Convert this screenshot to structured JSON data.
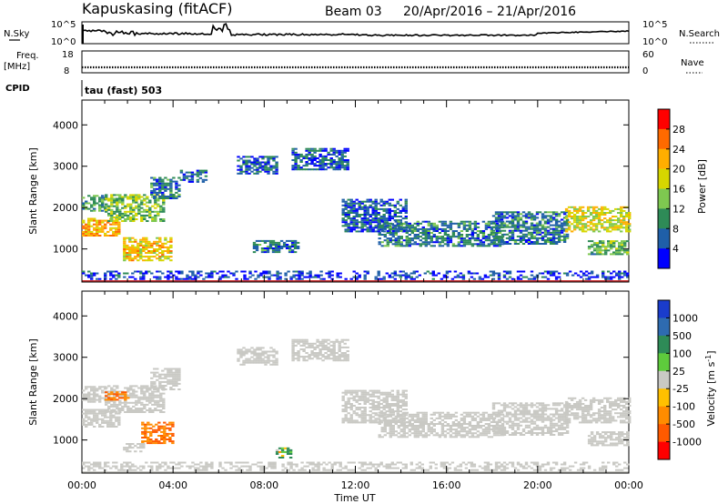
{
  "header": {
    "station": "Kapuskasing (fitACF)",
    "beam": "Beam 03",
    "date_range": "20/Apr/2016 – 21/Apr/2016"
  },
  "top_panels": {
    "nsky_label": "N.Sky",
    "nsky_ticks": [
      "10^5",
      "10^0"
    ],
    "nsearch_label": "N.Search",
    "nsearch_ticks": [
      "10^5",
      "10^0"
    ],
    "freq_label": "Freq.",
    "freq_unit": "[MHz]",
    "freq_ticks": [
      "18",
      "8"
    ],
    "nave_label": "Nave",
    "nave_ticks": [
      "60",
      "0"
    ],
    "cpid_label": "CPID",
    "cpid_value": "tau (fast) 503"
  },
  "chart_data": [
    {
      "type": "heatmap",
      "panel": "power",
      "xlabel": "",
      "ylabel": "Slant Range [km]",
      "x_range_hours": [
        0,
        24
      ],
      "ylim": [
        200,
        4600
      ],
      "yticks": [
        1000,
        2000,
        3000,
        4000
      ],
      "colorbar": {
        "label": "Power [dB]",
        "ticks": [
          "28",
          "24",
          "20",
          "16",
          "12",
          "8",
          "4"
        ],
        "colors": [
          "#ff0000",
          "#ff6a00",
          "#ffae00",
          "#d6d600",
          "#7ec850",
          "#2e8b57",
          "#1f5fa8",
          "#0000ff"
        ]
      },
      "echo_regions": [
        {
          "t0": 0.0,
          "t1": 1.6,
          "r0": 1300,
          "r1": 1750,
          "power": 22
        },
        {
          "t0": 0.0,
          "t1": 1.0,
          "r0": 1900,
          "r1": 2300,
          "power": 10
        },
        {
          "t0": 1.0,
          "t1": 3.6,
          "r0": 1650,
          "r1": 2300,
          "power": 14
        },
        {
          "t0": 1.8,
          "t1": 3.9,
          "r0": 700,
          "r1": 1250,
          "power": 20
        },
        {
          "t0": 3.0,
          "t1": 4.3,
          "r0": 2200,
          "r1": 2700,
          "power": 8
        },
        {
          "t0": 4.3,
          "t1": 5.5,
          "r0": 2600,
          "r1": 2900,
          "power": 6
        },
        {
          "t0": 6.8,
          "t1": 8.5,
          "r0": 2800,
          "r1": 3250,
          "power": 6
        },
        {
          "t0": 7.5,
          "t1": 9.5,
          "r0": 900,
          "r1": 1200,
          "power": 8
        },
        {
          "t0": 9.2,
          "t1": 11.6,
          "r0": 2900,
          "r1": 3400,
          "power": 6
        },
        {
          "t0": 11.4,
          "t1": 14.2,
          "r0": 1400,
          "r1": 2200,
          "power": 6
        },
        {
          "t0": 13.0,
          "t1": 18.5,
          "r0": 1050,
          "r1": 1650,
          "power": 8
        },
        {
          "t0": 18.0,
          "t1": 21.3,
          "r0": 1100,
          "r1": 1900,
          "power": 8
        },
        {
          "t0": 21.2,
          "t1": 24.0,
          "r0": 1400,
          "r1": 2000,
          "power": 18
        },
        {
          "t0": 22.2,
          "t1": 24.0,
          "r0": 850,
          "r1": 1200,
          "power": 12
        },
        {
          "t0": 0.0,
          "t1": 24.0,
          "r0": 250,
          "r1": 450,
          "power": 4
        }
      ]
    },
    {
      "type": "heatmap",
      "panel": "velocity",
      "xlabel": "Time UT",
      "ylabel": "Slant Range [km]",
      "x_range_hours": [
        0,
        24
      ],
      "xticks": [
        "00:00",
        "04:00",
        "08:00",
        "12:00",
        "16:00",
        "20:00",
        "00:00"
      ],
      "ylim": [
        200,
        4600
      ],
      "yticks": [
        1000,
        2000,
        3000,
        4000
      ],
      "colorbar": {
        "label": "Velocity [m s^-1]",
        "ticks": [
          "1000",
          "500",
          "100",
          "25",
          "-25",
          "-100",
          "-500",
          "-1000"
        ],
        "colors": [
          "#1a3ccc",
          "#2e6bb0",
          "#2e8b57",
          "#5ecb3c",
          "#c9c9c4",
          "#ffc000",
          "#ff8c00",
          "#ff5a00",
          "#ff0000"
        ]
      },
      "echo_regions": [
        {
          "t0": 0.0,
          "t1": 1.6,
          "r0": 1300,
          "r1": 1750,
          "velocity": 0
        },
        {
          "t0": 0.0,
          "t1": 1.0,
          "r0": 1900,
          "r1": 2300,
          "velocity": 0
        },
        {
          "t0": 1.0,
          "t1": 3.6,
          "r0": 1650,
          "r1": 2300,
          "velocity": 0
        },
        {
          "t0": 2.6,
          "t1": 4.0,
          "r0": 900,
          "r1": 1400,
          "velocity": -300
        },
        {
          "t0": 1.8,
          "t1": 2.7,
          "r0": 700,
          "r1": 900,
          "velocity": 0
        },
        {
          "t0": 1.0,
          "t1": 2.0,
          "r0": 1950,
          "r1": 2150,
          "velocity": -300
        },
        {
          "t0": 3.0,
          "t1": 4.3,
          "r0": 2200,
          "r1": 2700,
          "velocity": 0
        },
        {
          "t0": 6.8,
          "t1": 8.5,
          "r0": 2800,
          "r1": 3250,
          "velocity": 0
        },
        {
          "t0": 9.2,
          "t1": 11.6,
          "r0": 2900,
          "r1": 3400,
          "velocity": 0
        },
        {
          "t0": 11.4,
          "t1": 14.2,
          "r0": 1400,
          "r1": 2200,
          "velocity": 0
        },
        {
          "t0": 13.0,
          "t1": 18.5,
          "r0": 1050,
          "r1": 1650,
          "velocity": 0
        },
        {
          "t0": 18.0,
          "t1": 21.3,
          "r0": 1100,
          "r1": 1900,
          "velocity": 0
        },
        {
          "t0": 21.2,
          "t1": 24.0,
          "r0": 1400,
          "r1": 2000,
          "velocity": 0
        },
        {
          "t0": 22.2,
          "t1": 24.0,
          "r0": 850,
          "r1": 1200,
          "velocity": 0
        },
        {
          "t0": 8.5,
          "t1": 9.2,
          "r0": 550,
          "r1": 800,
          "velocity": 120
        },
        {
          "t0": 0.0,
          "t1": 24.0,
          "r0": 250,
          "r1": 450,
          "velocity": 0
        }
      ]
    }
  ]
}
